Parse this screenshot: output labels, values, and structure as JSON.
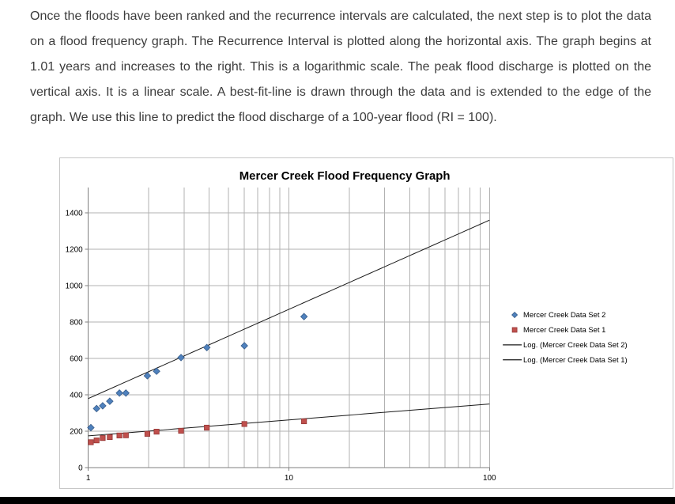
{
  "document": {
    "paragraph": "Once the floods have been ranked and the recurrence intervals are calculated, the next step is to plot the data on a flood frequency graph.  The Recurrence Interval is plotted along the horizontal axis. The graph begins at 1.01 years and increases to the right. This is a logarithmic scale. The peak flood discharge is plotted on the vertical axis. It is a linear scale.  A best-fit-line is drawn through the data and is extended to the edge of the graph.  We use this line to predict the flood discharge of a 100-year flood (RI = 100)."
  },
  "chart_data": {
    "type": "scatter",
    "title": "Mercer Creek Flood Frequency Graph",
    "x_scale": "log",
    "xlim": [
      1,
      100
    ],
    "ylim": [
      0,
      1540
    ],
    "x_ticks": [
      1,
      10,
      100
    ],
    "y_ticks": [
      0,
      200,
      400,
      600,
      800,
      1000,
      1200,
      1400
    ],
    "grid": true,
    "legend_position": "right",
    "colors": {
      "grid": "#b2b2b2",
      "axis": "#7f7f7f",
      "blue_series": "#4F81BD",
      "red_series": "#C0504D"
    },
    "x": [
      1.03,
      1.1,
      1.18,
      1.28,
      1.43,
      1.54,
      1.97,
      2.19,
      2.9,
      3.9,
      6.0,
      11.9
    ],
    "series": [
      {
        "name": "Mercer Creek Data Set 2",
        "marker": "diamond",
        "color": "#4F81BD",
        "edge": "#385D8A",
        "values": [
          220,
          325,
          340,
          365,
          410,
          410,
          505,
          530,
          605,
          660,
          670,
          830
        ]
      },
      {
        "name": "Mercer Creek Data Set 1",
        "marker": "square",
        "color": "#C0504D",
        "edge": "#953735",
        "values": [
          140,
          150,
          163,
          168,
          177,
          178,
          186,
          198,
          203,
          220,
          240,
          255
        ]
      }
    ],
    "trendlines": [
      {
        "name": "Log. (Mercer Creek Data Set 2)",
        "formula": "y = a*ln(x) + b",
        "a": 212.8,
        "b": 380,
        "color": "#1a1a1a"
      },
      {
        "name": "Log. (Mercer Creek Data Set 1)",
        "formula": "y = a*ln(x) + b",
        "a": 38,
        "b": 175,
        "color": "#1a1a1a"
      }
    ]
  }
}
